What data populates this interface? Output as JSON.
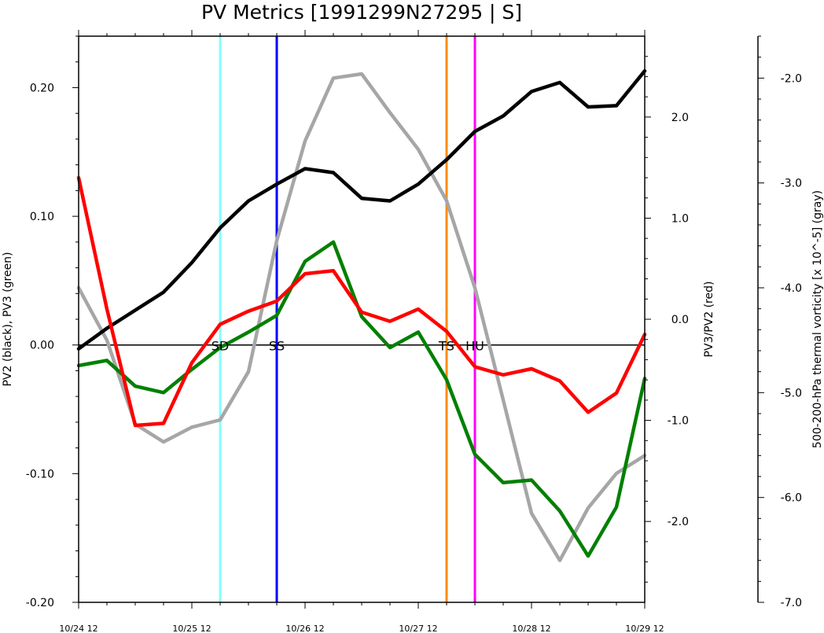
{
  "chart_data": {
    "type": "line",
    "title": "PV Metrics [1991299N27295 | S]",
    "x_labels": [
      "10/24 12",
      "10/25 12",
      "10/26 12",
      "10/27 12",
      "10/28 12",
      "10/29 12"
    ],
    "x_range_days": [
      0,
      5
    ],
    "x_days": [
      0,
      0.25,
      0.5,
      0.75,
      1,
      1.25,
      1.5,
      1.75,
      2,
      2.25,
      2.5,
      2.75,
      3,
      3.25,
      3.5,
      3.75,
      4,
      4.25,
      4.5,
      4.75,
      5
    ],
    "left_axis": {
      "label": "PV2 (black), PV3 (green)",
      "range": [
        -0.2,
        0.24
      ],
      "ticks": [
        "-0.20",
        "-0.10",
        "0.00",
        "0.10",
        "0.20"
      ],
      "tick_values": [
        -0.2,
        -0.1,
        0.0,
        0.1,
        0.2
      ]
    },
    "right_axis_1": {
      "label": "PV3/PV2 (red)",
      "range": [
        -2.8,
        2.8
      ],
      "ticks": [
        "-2.0",
        "-1.0",
        "0.0",
        "1.0",
        "2.0"
      ],
      "tick_values": [
        -2.0,
        -1.0,
        0.0,
        1.0,
        2.0
      ]
    },
    "right_axis_2": {
      "label": "500-200-hPa thermal vorticity [x 10^-5] (gray)",
      "range": [
        -7.0,
        -1.6
      ],
      "ticks": [
        "-7.0",
        "-6.0",
        "-5.0",
        "-4.0",
        "-3.0",
        "-2.0"
      ],
      "tick_values": [
        -7.0,
        -6.0,
        -5.0,
        -4.0,
        -3.0,
        -2.0
      ]
    },
    "series": [
      {
        "name": "PV2",
        "axis": "left",
        "color": "#000000",
        "values": [
          -0.003,
          0.013,
          0.027,
          0.041,
          0.064,
          0.091,
          0.112,
          0.125,
          0.137,
          0.134,
          0.114,
          0.112,
          0.125,
          0.144,
          0.166,
          0.178,
          0.197,
          0.204,
          0.185,
          0.186,
          0.213
        ]
      },
      {
        "name": "PV3",
        "axis": "left",
        "color": "#008000",
        "values": [
          -0.016,
          -0.012,
          -0.032,
          -0.037,
          -0.019,
          -0.002,
          0.01,
          0.023,
          0.065,
          0.08,
          0.022,
          -0.002,
          0.01,
          -0.027,
          -0.085,
          -0.107,
          -0.105,
          -0.129,
          -0.164,
          -0.126,
          -0.026
        ]
      },
      {
        "name": "PV3/PV2",
        "axis": "right1",
        "color": "#ff0000",
        "values": [
          1.4,
          0.1,
          -1.05,
          -1.03,
          -0.43,
          -0.05,
          0.08,
          0.18,
          0.45,
          0.48,
          0.07,
          -0.02,
          0.1,
          -0.12,
          -0.47,
          -0.55,
          -0.49,
          -0.61,
          -0.92,
          -0.73,
          -0.15
        ]
      },
      {
        "name": "thermal vorticity",
        "axis": "right2",
        "color": "#a6a6a6",
        "values": [
          -4.0,
          -4.5,
          -5.3,
          -5.47,
          -5.33,
          -5.26,
          -4.8,
          -3.55,
          -2.6,
          -2.0,
          -1.96,
          -2.33,
          -2.68,
          -3.17,
          -4.0,
          -5.07,
          -6.15,
          -6.6,
          -6.1,
          -5.77,
          -5.6
        ]
      }
    ],
    "vertical_markers": [
      {
        "label": "SD",
        "x_day": 1.25,
        "color": "#80ffff"
      },
      {
        "label": "SS",
        "x_day": 1.75,
        "color": "#0000ff"
      },
      {
        "label": "TS",
        "x_day": 3.25,
        "color": "#ff8c00"
      },
      {
        "label": "HU",
        "x_day": 3.5,
        "color": "#ff00ff"
      }
    ],
    "zero_line": true
  }
}
